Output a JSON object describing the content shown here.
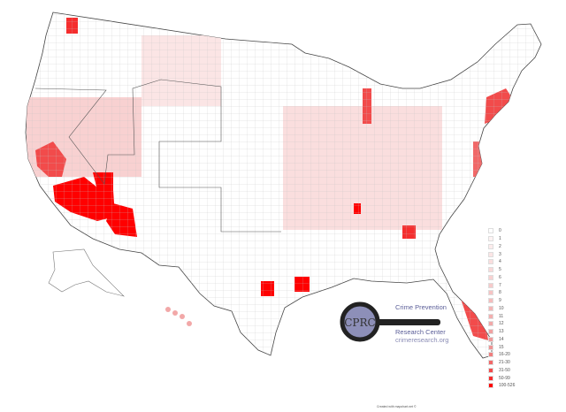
{
  "legend": {
    "items": [
      {
        "label": "0",
        "color": "#ffffff"
      },
      {
        "label": "1",
        "color": "#fdf3f3"
      },
      {
        "label": "2",
        "color": "#fcecec"
      },
      {
        "label": "3",
        "color": "#fbe5e5"
      },
      {
        "label": "4",
        "color": "#fadede"
      },
      {
        "label": "5",
        "color": "#f9d8d8"
      },
      {
        "label": "6",
        "color": "#f8d1d1"
      },
      {
        "label": "7",
        "color": "#f7caca"
      },
      {
        "label": "8",
        "color": "#f6c3c3"
      },
      {
        "label": "9",
        "color": "#f5bcbc"
      },
      {
        "label": "10",
        "color": "#f4b5b5"
      },
      {
        "label": "11",
        "color": "#f3aeae"
      },
      {
        "label": "12",
        "color": "#f2a8a8"
      },
      {
        "label": "13",
        "color": "#f1a1a1"
      },
      {
        "label": "14",
        "color": "#f09a9a"
      },
      {
        "label": "15",
        "color": "#ef9393"
      },
      {
        "label": "16-20",
        "color": "#f07e7e"
      },
      {
        "label": "21-30",
        "color": "#f16868"
      },
      {
        "label": "31-50",
        "color": "#f24b4b"
      },
      {
        "label": "50-99",
        "color": "#f52d2d"
      },
      {
        "label": "100-526",
        "color": "#ff0000"
      }
    ]
  },
  "logo": {
    "mark": "CPRC",
    "line1": "Crime Prevention",
    "line2": "Research Center",
    "url": "crimeresearch.org"
  },
  "footer": "Created with mapchart.net ©",
  "colors": {
    "border": "#333333",
    "county_line": "#bbbbbb",
    "max": "#ff0000"
  }
}
